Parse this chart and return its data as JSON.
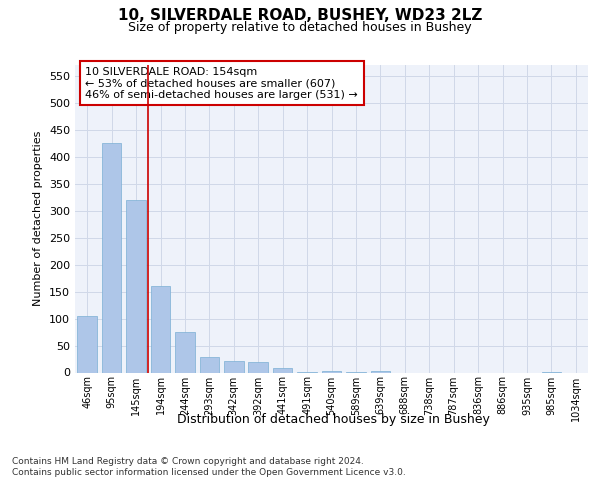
{
  "title_line1": "10, SILVERDALE ROAD, BUSHEY, WD23 2LZ",
  "title_line2": "Size of property relative to detached houses in Bushey",
  "xlabel": "Distribution of detached houses by size in Bushey",
  "ylabel": "Number of detached properties",
  "footnote": "Contains HM Land Registry data © Crown copyright and database right 2024.\nContains public sector information licensed under the Open Government Licence v3.0.",
  "bar_labels": [
    "46sqm",
    "95sqm",
    "145sqm",
    "194sqm",
    "244sqm",
    "293sqm",
    "342sqm",
    "392sqm",
    "441sqm",
    "491sqm",
    "540sqm",
    "589sqm",
    "639sqm",
    "688sqm",
    "738sqm",
    "787sqm",
    "836sqm",
    "886sqm",
    "935sqm",
    "985sqm",
    "1034sqm"
  ],
  "bar_values": [
    105,
    425,
    320,
    160,
    75,
    28,
    22,
    20,
    8,
    1,
    3,
    1,
    3,
    0,
    0,
    0,
    0,
    0,
    0,
    1,
    0
  ],
  "bar_color": "#aec6e8",
  "bar_edge_color": "#7bafd4",
  "grid_color": "#d0d8e8",
  "background_color": "#eef2fa",
  "vline_x": 2.5,
  "vline_color": "#cc0000",
  "annotation_text": "10 SILVERDALE ROAD: 154sqm\n← 53% of detached houses are smaller (607)\n46% of semi-detached houses are larger (531) →",
  "annotation_box_color": "#ffffff",
  "annotation_box_edge": "#cc0000",
  "ylim": [
    0,
    570
  ],
  "yticks": [
    0,
    50,
    100,
    150,
    200,
    250,
    300,
    350,
    400,
    450,
    500,
    550
  ],
  "title_fontsize": 11,
  "subtitle_fontsize": 9,
  "ylabel_fontsize": 8,
  "xlabel_fontsize": 9,
  "ytick_fontsize": 8,
  "xtick_fontsize": 7,
  "footnote_fontsize": 6.5,
  "annotation_fontsize": 8
}
